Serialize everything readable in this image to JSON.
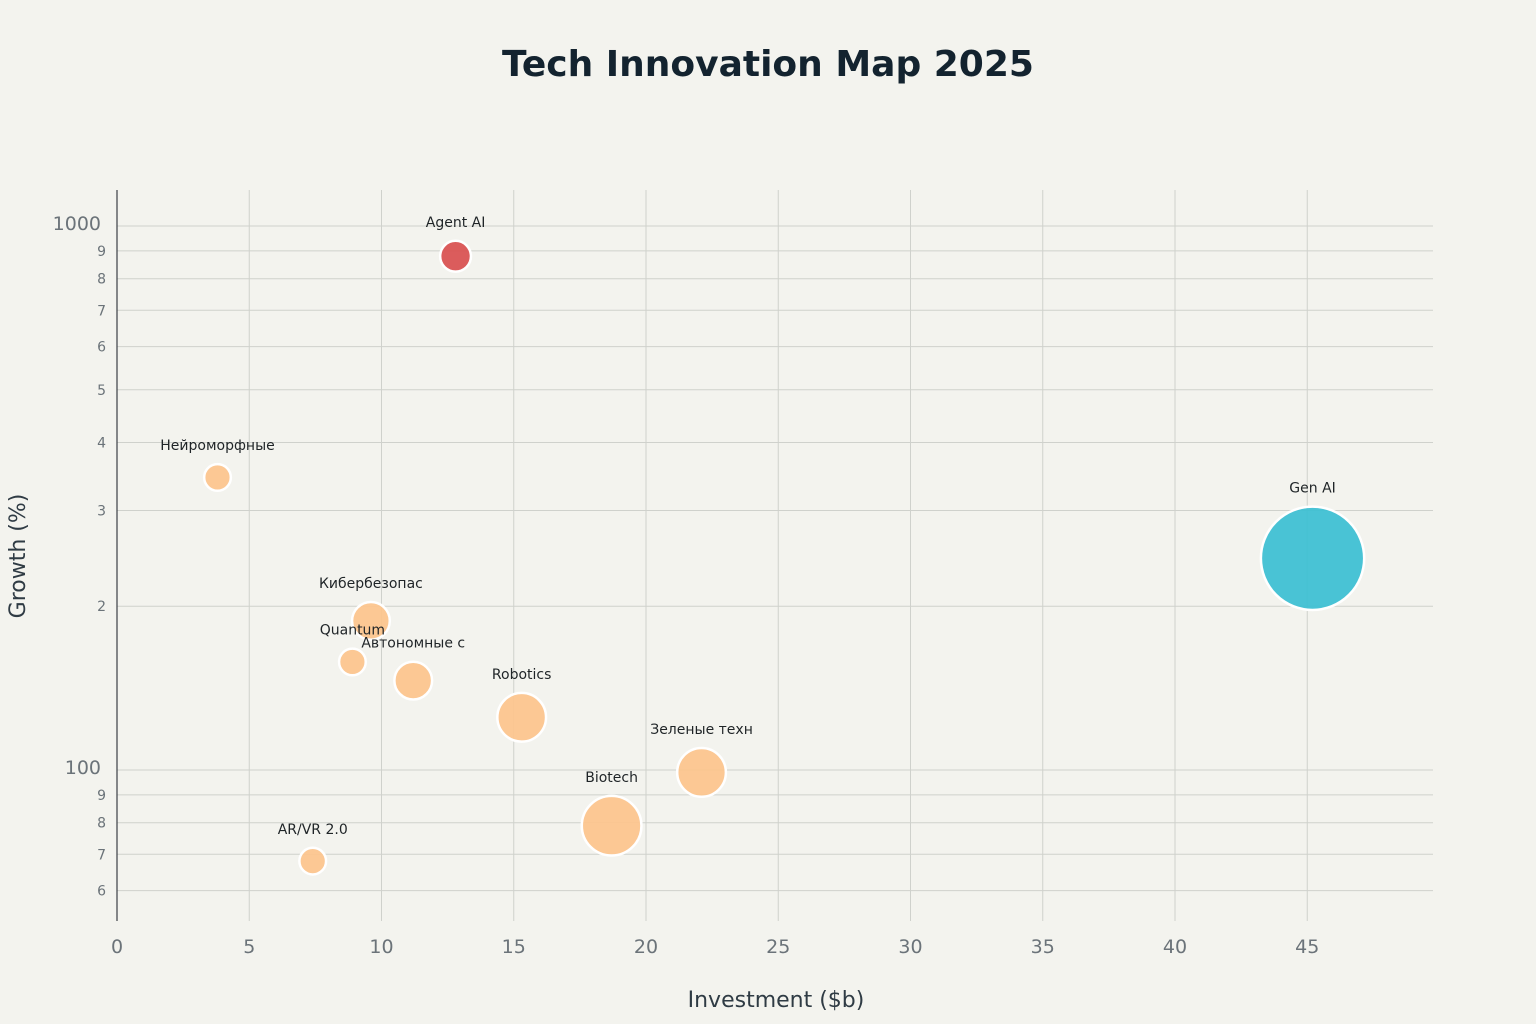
{
  "chart_data": {
    "type": "scatter",
    "title": "Tech Innovation Map 2025",
    "xlabel": "Investment ($b)",
    "ylabel": "Growth (%)",
    "x_scale": "linear",
    "y_scale": "log",
    "xlim": [
      0,
      50
    ],
    "ylim": [
      52,
      1300
    ],
    "grid": true,
    "x_ticks": [
      "0",
      "5",
      "10",
      "15",
      "20",
      "25",
      "30",
      "35",
      "40",
      "45"
    ],
    "y_major_ticks": [
      "100",
      "1000"
    ],
    "y_minor_tick_labels": [
      "6",
      "7",
      "8",
      "9",
      "2",
      "3",
      "4",
      "5",
      "6",
      "7",
      "8",
      "9"
    ],
    "points": [
      {
        "label": "Agent AI",
        "x": 12.8,
        "y": 880,
        "size": 4,
        "color": "#d94f4f"
      },
      {
        "label": "Нейроморфные",
        "x": 3.8,
        "y": 345,
        "size": 3,
        "color": "#fdc48c"
      },
      {
        "label": "Gen AI",
        "x": 45.2,
        "y": 245,
        "size": 45,
        "color": "#3bbfd3"
      },
      {
        "label": "Кибербезопас",
        "x": 9.6,
        "y": 188,
        "size": 6,
        "color": "#fdc48c"
      },
      {
        "label": "Quantum",
        "x": 8.9,
        "y": 158,
        "size": 3,
        "color": "#fdc48c"
      },
      {
        "label": "Автономные с",
        "x": 11.2,
        "y": 146,
        "size": 6,
        "color": "#fdc48c"
      },
      {
        "label": "Robotics",
        "x": 15.3,
        "y": 125,
        "size": 10,
        "color": "#fdc48c"
      },
      {
        "label": "Зеленые техн",
        "x": 22.1,
        "y": 99,
        "size": 10,
        "color": "#fdc48c"
      },
      {
        "label": "Biotech",
        "x": 18.7,
        "y": 79,
        "size": 15,
        "color": "#fdc48c"
      },
      {
        "label": "AR/VR 2.0",
        "x": 7.4,
        "y": 68,
        "size": 3,
        "color": "#fdc48c"
      }
    ]
  }
}
